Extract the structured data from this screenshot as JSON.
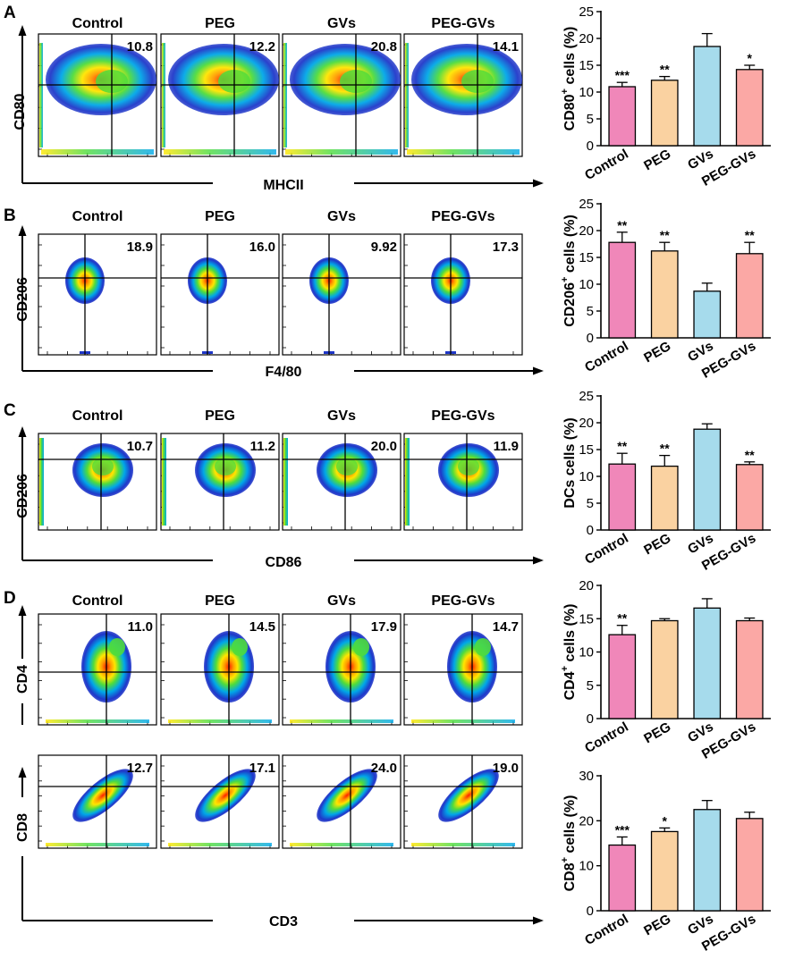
{
  "figure": {
    "groups": [
      "Control",
      "PEG",
      "GVs",
      "PEG-GVs"
    ],
    "colors": {
      "Control": "#f087b9",
      "PEG": "#fad2a1",
      "GVs": "#a6dbec",
      "PEG-GVs": "#fba8a5",
      "axis": "#000000"
    }
  },
  "panels": [
    {
      "letter": "A",
      "flow": {
        "y_marker": "CD80",
        "x_marker": "MHCII",
        "quadrant_values": [
          "10.8",
          "12.2",
          "20.8",
          "14.1"
        ],
        "blob": "wide"
      },
      "chart": {
        "ylabel_main": "CD80",
        "ylabel_sup": "+",
        "ylabel_rest": " cells (%)",
        "ticks": [
          "0",
          "5",
          "10",
          "15",
          "20",
          "25"
        ]
      }
    },
    {
      "letter": "B",
      "flow": {
        "y_marker": "CD206",
        "x_marker": "F4/80",
        "quadrant_values": [
          "18.9",
          "16.0",
          "9.92",
          "17.3"
        ],
        "blob": "round"
      },
      "chart": {
        "ylabel_main": "CD206",
        "ylabel_sup": "+",
        "ylabel_rest": " cells (%)",
        "ticks": [
          "0",
          "5",
          "10",
          "15",
          "20",
          "25"
        ]
      }
    },
    {
      "letter": "C",
      "flow": {
        "y_marker": "CD206",
        "x_marker": "CD86",
        "quadrant_values": [
          "10.7",
          "11.2",
          "20.0",
          "11.9"
        ],
        "blob": "mid"
      },
      "chart": {
        "ylabel_main": "DCs cells (%)",
        "ylabel_sup": "",
        "ylabel_rest": "",
        "ticks": [
          "0",
          "5",
          "10",
          "15",
          "20",
          "25"
        ]
      }
    },
    {
      "letter": "D",
      "flow": {
        "y_marker": "CD4",
        "x_marker": "",
        "quadrant_values": [
          "11.0",
          "14.5",
          "17.9",
          "14.7"
        ],
        "blob": "tall"
      },
      "chart": {
        "ylabel_main": "CD4",
        "ylabel_sup": "+",
        "ylabel_rest": " cells (%)",
        "ticks": [
          "0",
          "5",
          "10",
          "15",
          "20"
        ]
      }
    },
    {
      "letter": "",
      "flow": {
        "y_marker": "CD8",
        "x_marker": "CD3",
        "quadrant_values": [
          "12.7",
          "17.1",
          "24.0",
          "19.0"
        ],
        "blob": "diag"
      },
      "chart": {
        "ylabel_main": "CD8",
        "ylabel_sup": "+",
        "ylabel_rest": " cells (%)",
        "ticks": [
          "0",
          "10",
          "20",
          "30"
        ]
      }
    }
  ],
  "chart_data": [
    {
      "type": "bar",
      "title": "",
      "xlabel": "",
      "ylabel": "CD80+ cells (%)",
      "categories": [
        "Control",
        "PEG",
        "GVs",
        "PEG-GVs"
      ],
      "values": [
        11.0,
        12.2,
        18.5,
        14.2
      ],
      "errors": [
        0.8,
        0.7,
        2.4,
        0.8
      ],
      "significance": [
        "***",
        "**",
        "",
        "*"
      ],
      "ylim": [
        0,
        25
      ],
      "yticks": [
        0,
        5,
        10,
        15,
        20,
        25
      ]
    },
    {
      "type": "bar",
      "title": "",
      "xlabel": "",
      "ylabel": "CD206+ cells (%)",
      "categories": [
        "Control",
        "PEG",
        "GVs",
        "PEG-GVs"
      ],
      "values": [
        17.8,
        16.2,
        8.7,
        15.7
      ],
      "errors": [
        1.9,
        1.6,
        1.5,
        2.1
      ],
      "significance": [
        "**",
        "**",
        "",
        "**"
      ],
      "ylim": [
        0,
        25
      ],
      "yticks": [
        0,
        5,
        10,
        15,
        20,
        25
      ]
    },
    {
      "type": "bar",
      "title": "",
      "xlabel": "",
      "ylabel": "DCs cells (%)",
      "categories": [
        "Control",
        "PEG",
        "GVs",
        "PEG-GVs"
      ],
      "values": [
        12.3,
        11.9,
        18.8,
        12.2
      ],
      "errors": [
        2.0,
        2.0,
        1.0,
        0.5
      ],
      "significance": [
        "**",
        "**",
        "",
        "**"
      ],
      "ylim": [
        0,
        25
      ],
      "yticks": [
        0,
        5,
        10,
        15,
        20,
        25
      ]
    },
    {
      "type": "bar",
      "title": "",
      "xlabel": "",
      "ylabel": "CD4+ cells (%)",
      "categories": [
        "Control",
        "PEG",
        "GVs",
        "PEG-GVs"
      ],
      "values": [
        12.6,
        14.7,
        16.6,
        14.7
      ],
      "errors": [
        1.4,
        0.3,
        1.4,
        0.4
      ],
      "significance": [
        "**",
        "",
        "",
        ""
      ],
      "ylim": [
        0,
        20
      ],
      "yticks": [
        0,
        5,
        10,
        15,
        20
      ]
    },
    {
      "type": "bar",
      "title": "",
      "xlabel": "",
      "ylabel": "CD8+ cells (%)",
      "categories": [
        "Control",
        "PEG",
        "GVs",
        "PEG-GVs"
      ],
      "values": [
        14.6,
        17.6,
        22.5,
        20.5
      ],
      "errors": [
        1.8,
        0.8,
        2.0,
        1.4
      ],
      "significance": [
        "***",
        "*",
        "",
        ""
      ],
      "ylim": [
        0,
        30
      ],
      "yticks": [
        0,
        10,
        20,
        30
      ]
    }
  ]
}
